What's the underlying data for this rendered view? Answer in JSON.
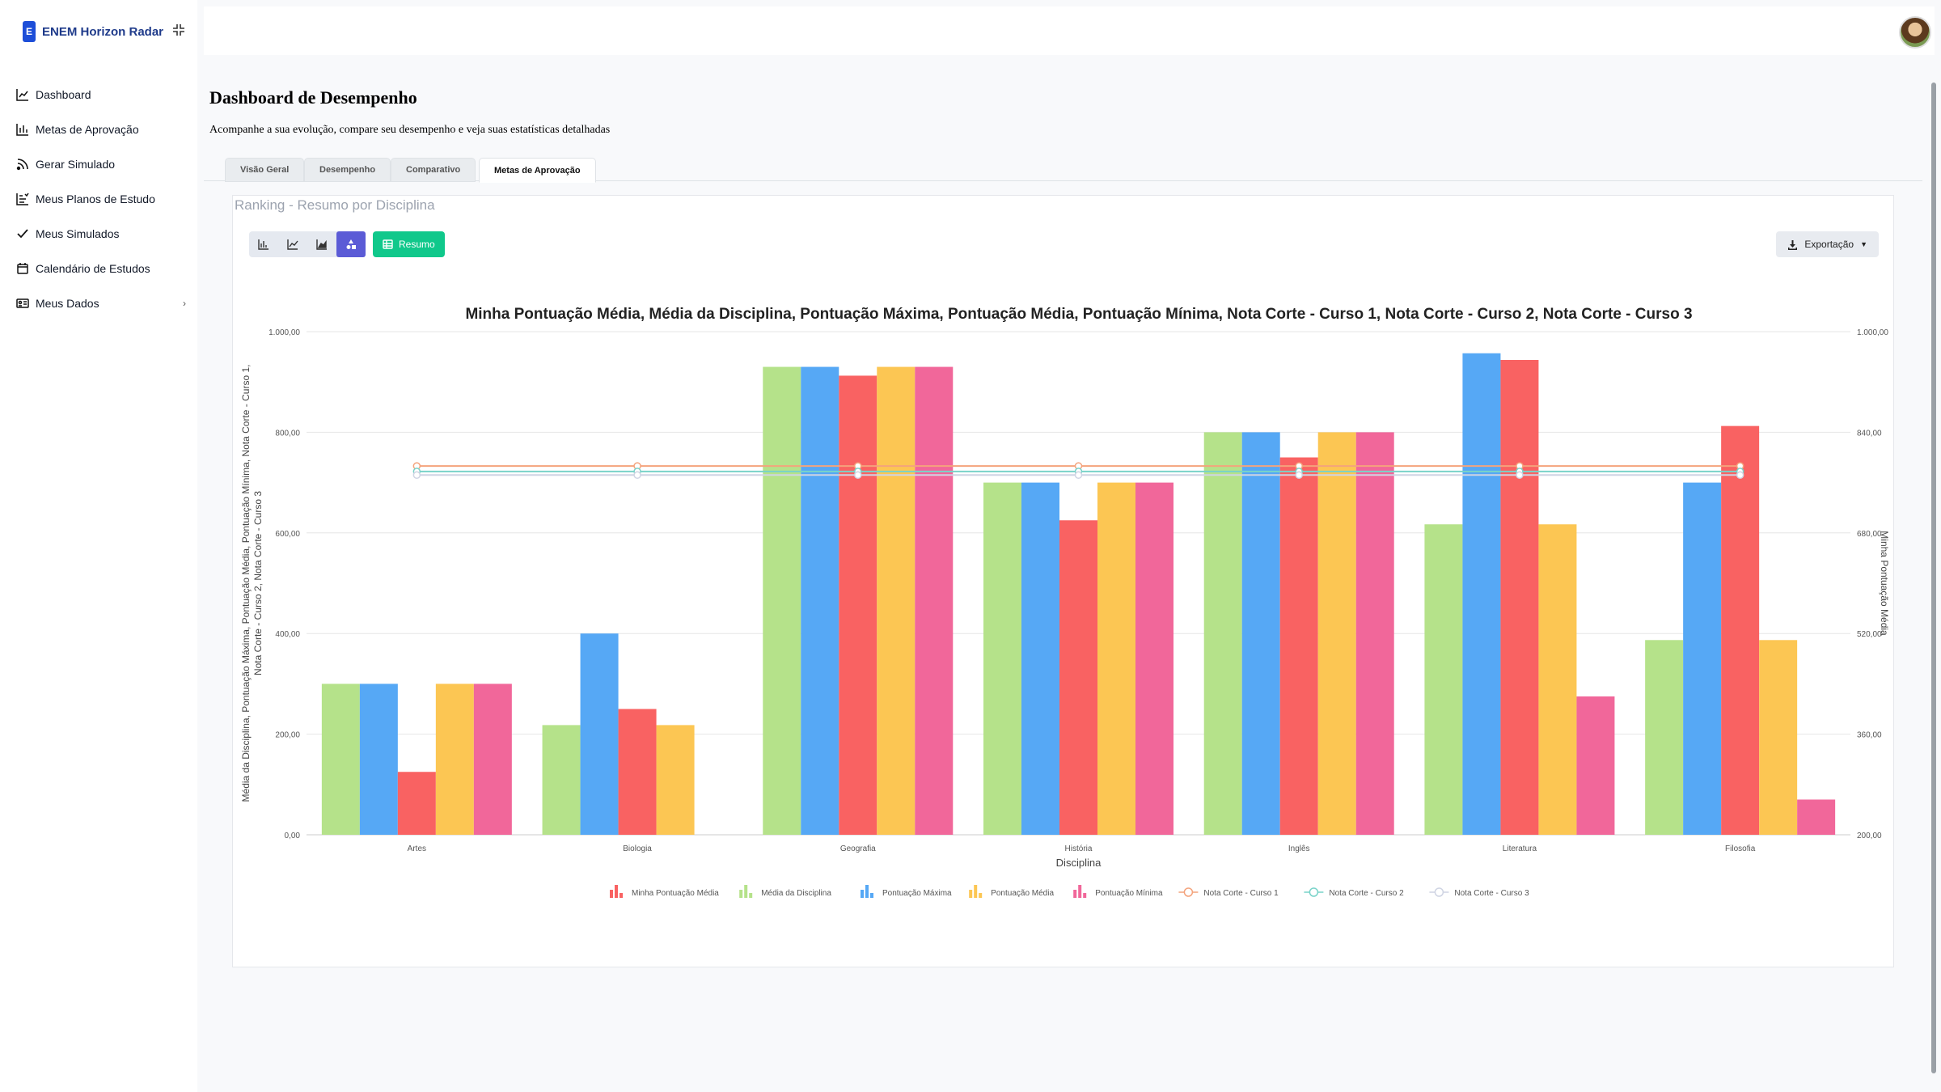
{
  "brand": {
    "logo_letter": "E",
    "name": "ENEM Horizon Radar"
  },
  "nav": [
    {
      "label": "Dashboard",
      "icon": "line-chart-icon"
    },
    {
      "label": "Metas de Aprovação",
      "icon": "bar-chart-icon"
    },
    {
      "label": "Gerar Simulado",
      "icon": "rss-icon"
    },
    {
      "label": "Meus Planos de Estudo",
      "icon": "plan-icon"
    },
    {
      "label": "Meus Simulados",
      "icon": "check-list-icon"
    },
    {
      "label": "Calendário de Estudos",
      "icon": "calendar-icon"
    },
    {
      "label": "Meus Dados",
      "icon": "id-card-icon",
      "chevron": "›"
    }
  ],
  "page": {
    "title": "Dashboard de Desempenho",
    "subtitle": "Acompanhe a sua evolução, compare seu desempenho e veja suas estatísticas detalhadas"
  },
  "tabs": [
    {
      "label": "Visão Geral"
    },
    {
      "label": "Desempenho"
    },
    {
      "label": "Comparativo"
    },
    {
      "label": "Metas de Aprovação",
      "active": true
    }
  ],
  "card": {
    "title": "Ranking - Resumo por Disciplina",
    "resumo_label": "Resumo",
    "export_label": "Exportação"
  },
  "chart_data": {
    "type": "bar",
    "title": "Minha Pontuação Média, Média da Disciplina, Pontuação Máxima, Pontuação Média, Pontuação Mínima, Nota Corte - Curso 1, Nota Corte - Curso 2, Nota Corte - Curso 3",
    "xlabel": "Disciplina",
    "ylabel_left": "Média da Disciplina, Pontuação Máxima, Pontuação Média, Pontuação Mínima, Nota Corte - Curso 1, Nota Corte - Curso 2, Nota Corte - Curso 3",
    "ylabel_right": "Minha Pontuação Média",
    "ylim_left": [
      0,
      1000
    ],
    "ylim_right": [
      200,
      1000
    ],
    "yticks_left": [
      "0,00",
      "200,00",
      "400,00",
      "600,00",
      "800,00",
      "1.000,00"
    ],
    "yticks_right": [
      "200,00",
      "360,00",
      "520,00",
      "680,00",
      "840,00",
      "1.000,00"
    ],
    "categories": [
      "Artes",
      "Biologia",
      "Geografia",
      "História",
      "Inglês",
      "Literatura",
      "Filosofia"
    ],
    "series": [
      {
        "name": "Média da Disciplina",
        "type": "bar",
        "axis": "left",
        "color": "#b5e28a",
        "values": [
          300,
          218,
          930,
          700,
          800,
          617,
          387
        ]
      },
      {
        "name": "Pontuação Máxima",
        "type": "bar",
        "axis": "left",
        "color": "#56a8f5",
        "values": [
          300,
          400,
          930,
          700,
          800,
          957,
          700
        ]
      },
      {
        "name": "Minha Pontuação Média",
        "type": "bar",
        "axis": "right",
        "color": "#f96262",
        "values": [
          300,
          400,
          930,
          700,
          800,
          955,
          850
        ]
      },
      {
        "name": "Pontuação Média",
        "type": "bar",
        "axis": "left",
        "color": "#fcc653",
        "values": [
          300,
          218,
          930,
          700,
          800,
          617,
          387
        ]
      },
      {
        "name": "Pontuação Mínima",
        "type": "bar",
        "axis": "left",
        "color": "#f1679a",
        "values": [
          300,
          0,
          930,
          700,
          800,
          275,
          70
        ]
      },
      {
        "name": "Nota Corte - Curso 1",
        "type": "line",
        "axis": "left",
        "color": "#f4a37c",
        "values": [
          733,
          733,
          733,
          733,
          733,
          733,
          733
        ]
      },
      {
        "name": "Nota Corte - Curso 2",
        "type": "line",
        "axis": "left",
        "color": "#79d3c9",
        "values": [
          722,
          722,
          722,
          722,
          722,
          722,
          722
        ]
      },
      {
        "name": "Nota Corte - Curso 3",
        "type": "line",
        "axis": "left",
        "color": "#cfd4e3",
        "values": [
          715,
          715,
          715,
          715,
          715,
          715,
          715
        ]
      }
    ],
    "legend_order": [
      "Minha Pontuação Média",
      "Média da Disciplina",
      "Pontuação Máxima",
      "Pontuação Média",
      "Pontuação Mínima",
      "Nota Corte - Curso 1",
      "Nota Corte - Curso 2",
      "Nota Corte - Curso 3"
    ],
    "legend_placement": "bottom",
    "grid": true
  }
}
